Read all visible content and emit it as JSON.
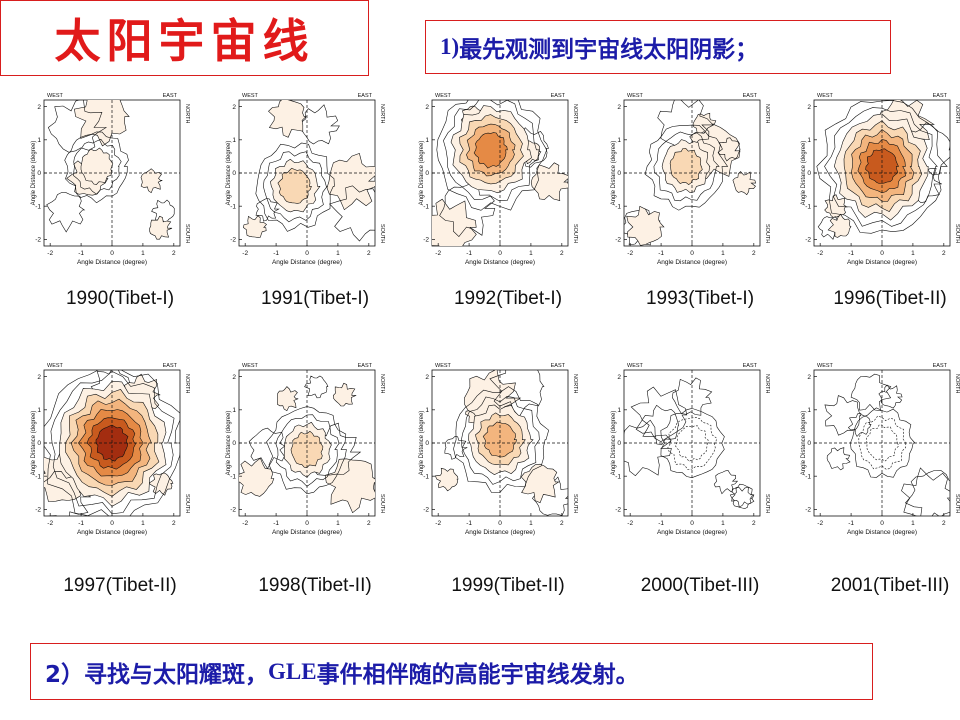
{
  "title": "太阳宇宙线",
  "note1": {
    "num": "1)",
    "text": " 最先观测到宇宙线太阳阴影；"
  },
  "note2": {
    "num": "2）",
    "prefix": "寻找与太阳耀斑，",
    "gle": "GLE",
    "suffix": "事件相伴随的高能宇宙线发射。"
  },
  "axis": {
    "west": "WEST",
    "east": "EAST",
    "north": "NORTH",
    "south": "SOUTH",
    "xlabel": "Angle Distance (degree)",
    "ylabel": "Angle Distance (degree)",
    "ticks": [
      "-2",
      "-1",
      "0",
      "1",
      "2"
    ]
  },
  "palette": [
    "#fdf1e4",
    "#f9d8b4",
    "#f3b57e",
    "#e58a45",
    "#c85a1e",
    "#a32d10"
  ],
  "panels": [
    {
      "caption": "1990(Tibet-I)",
      "intensity": 1,
      "cx": -0.5,
      "cy": 0.2
    },
    {
      "caption": "1991(Tibet-I)",
      "intensity": 2,
      "cx": -0.4,
      "cy": -0.4
    },
    {
      "caption": "1992(Tibet-I)",
      "intensity": 4,
      "cx": -0.3,
      "cy": 0.7
    },
    {
      "caption": "1993(Tibet-I)",
      "intensity": 2,
      "cx": -0.2,
      "cy": 0.2
    },
    {
      "caption": "1996(Tibet-II)",
      "intensity": 5,
      "cx": 0.0,
      "cy": 0.2
    },
    {
      "caption": "1997(Tibet-II)",
      "intensity": 6,
      "cx": 0.0,
      "cy": 0.0
    },
    {
      "caption": "1998(Tibet-II)",
      "intensity": 2,
      "cx": 0.0,
      "cy": -0.2
    },
    {
      "caption": "1999(Tibet-II)",
      "intensity": 3,
      "cx": 0.0,
      "cy": 0.1
    },
    {
      "caption": "2000(Tibet-III)",
      "intensity": 0,
      "cx": 0.0,
      "cy": 0.0
    },
    {
      "caption": "2001(Tibet-III)",
      "intensity": 0,
      "cx": 0.0,
      "cy": 0.0
    }
  ]
}
